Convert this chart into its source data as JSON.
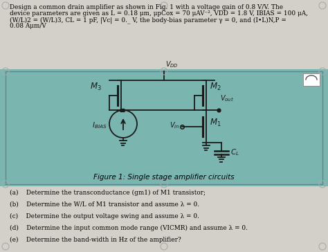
{
  "title_text1": "Design a common drain amplifier as shown in Fig. 1 with a voltage gain of 0.8 V/V. The",
  "title_text2": "device parameters are given as L = 0.18 μm, μpCox = 70 μAV⁻², VDD = 1.8 V, IBIAS = 100 μA,",
  "title_text3": "(W/L)2 = (W/L)3, CL = 1 pF, |Vc| = 0._ V, the body-bias parameter γ = 0, and (I•L)N,P =",
  "title_text4": "0.08 Aμm/V",
  "figure_caption": "Figure 1: Single stage amplifier circuits",
  "q_a": "(a)    Determine the transconductance (gm1) of M1 transistor;",
  "q_b": "(b)    Determine the W/L of M1 transistor and assume λ = 0.",
  "q_c": "(c)    Determine the output voltage swing and assume λ = 0.",
  "q_d": "(d)    Determine the input common mode range (VICMR) and assume λ = 0.",
  "q_e": "(e)    Determine the band-width in Hz of the amplifier?",
  "bg_gray": "#d3d0c9",
  "bg_teal": "#7ab5b0",
  "border_color": "#4a9090",
  "line_color": "#1a1a1a"
}
